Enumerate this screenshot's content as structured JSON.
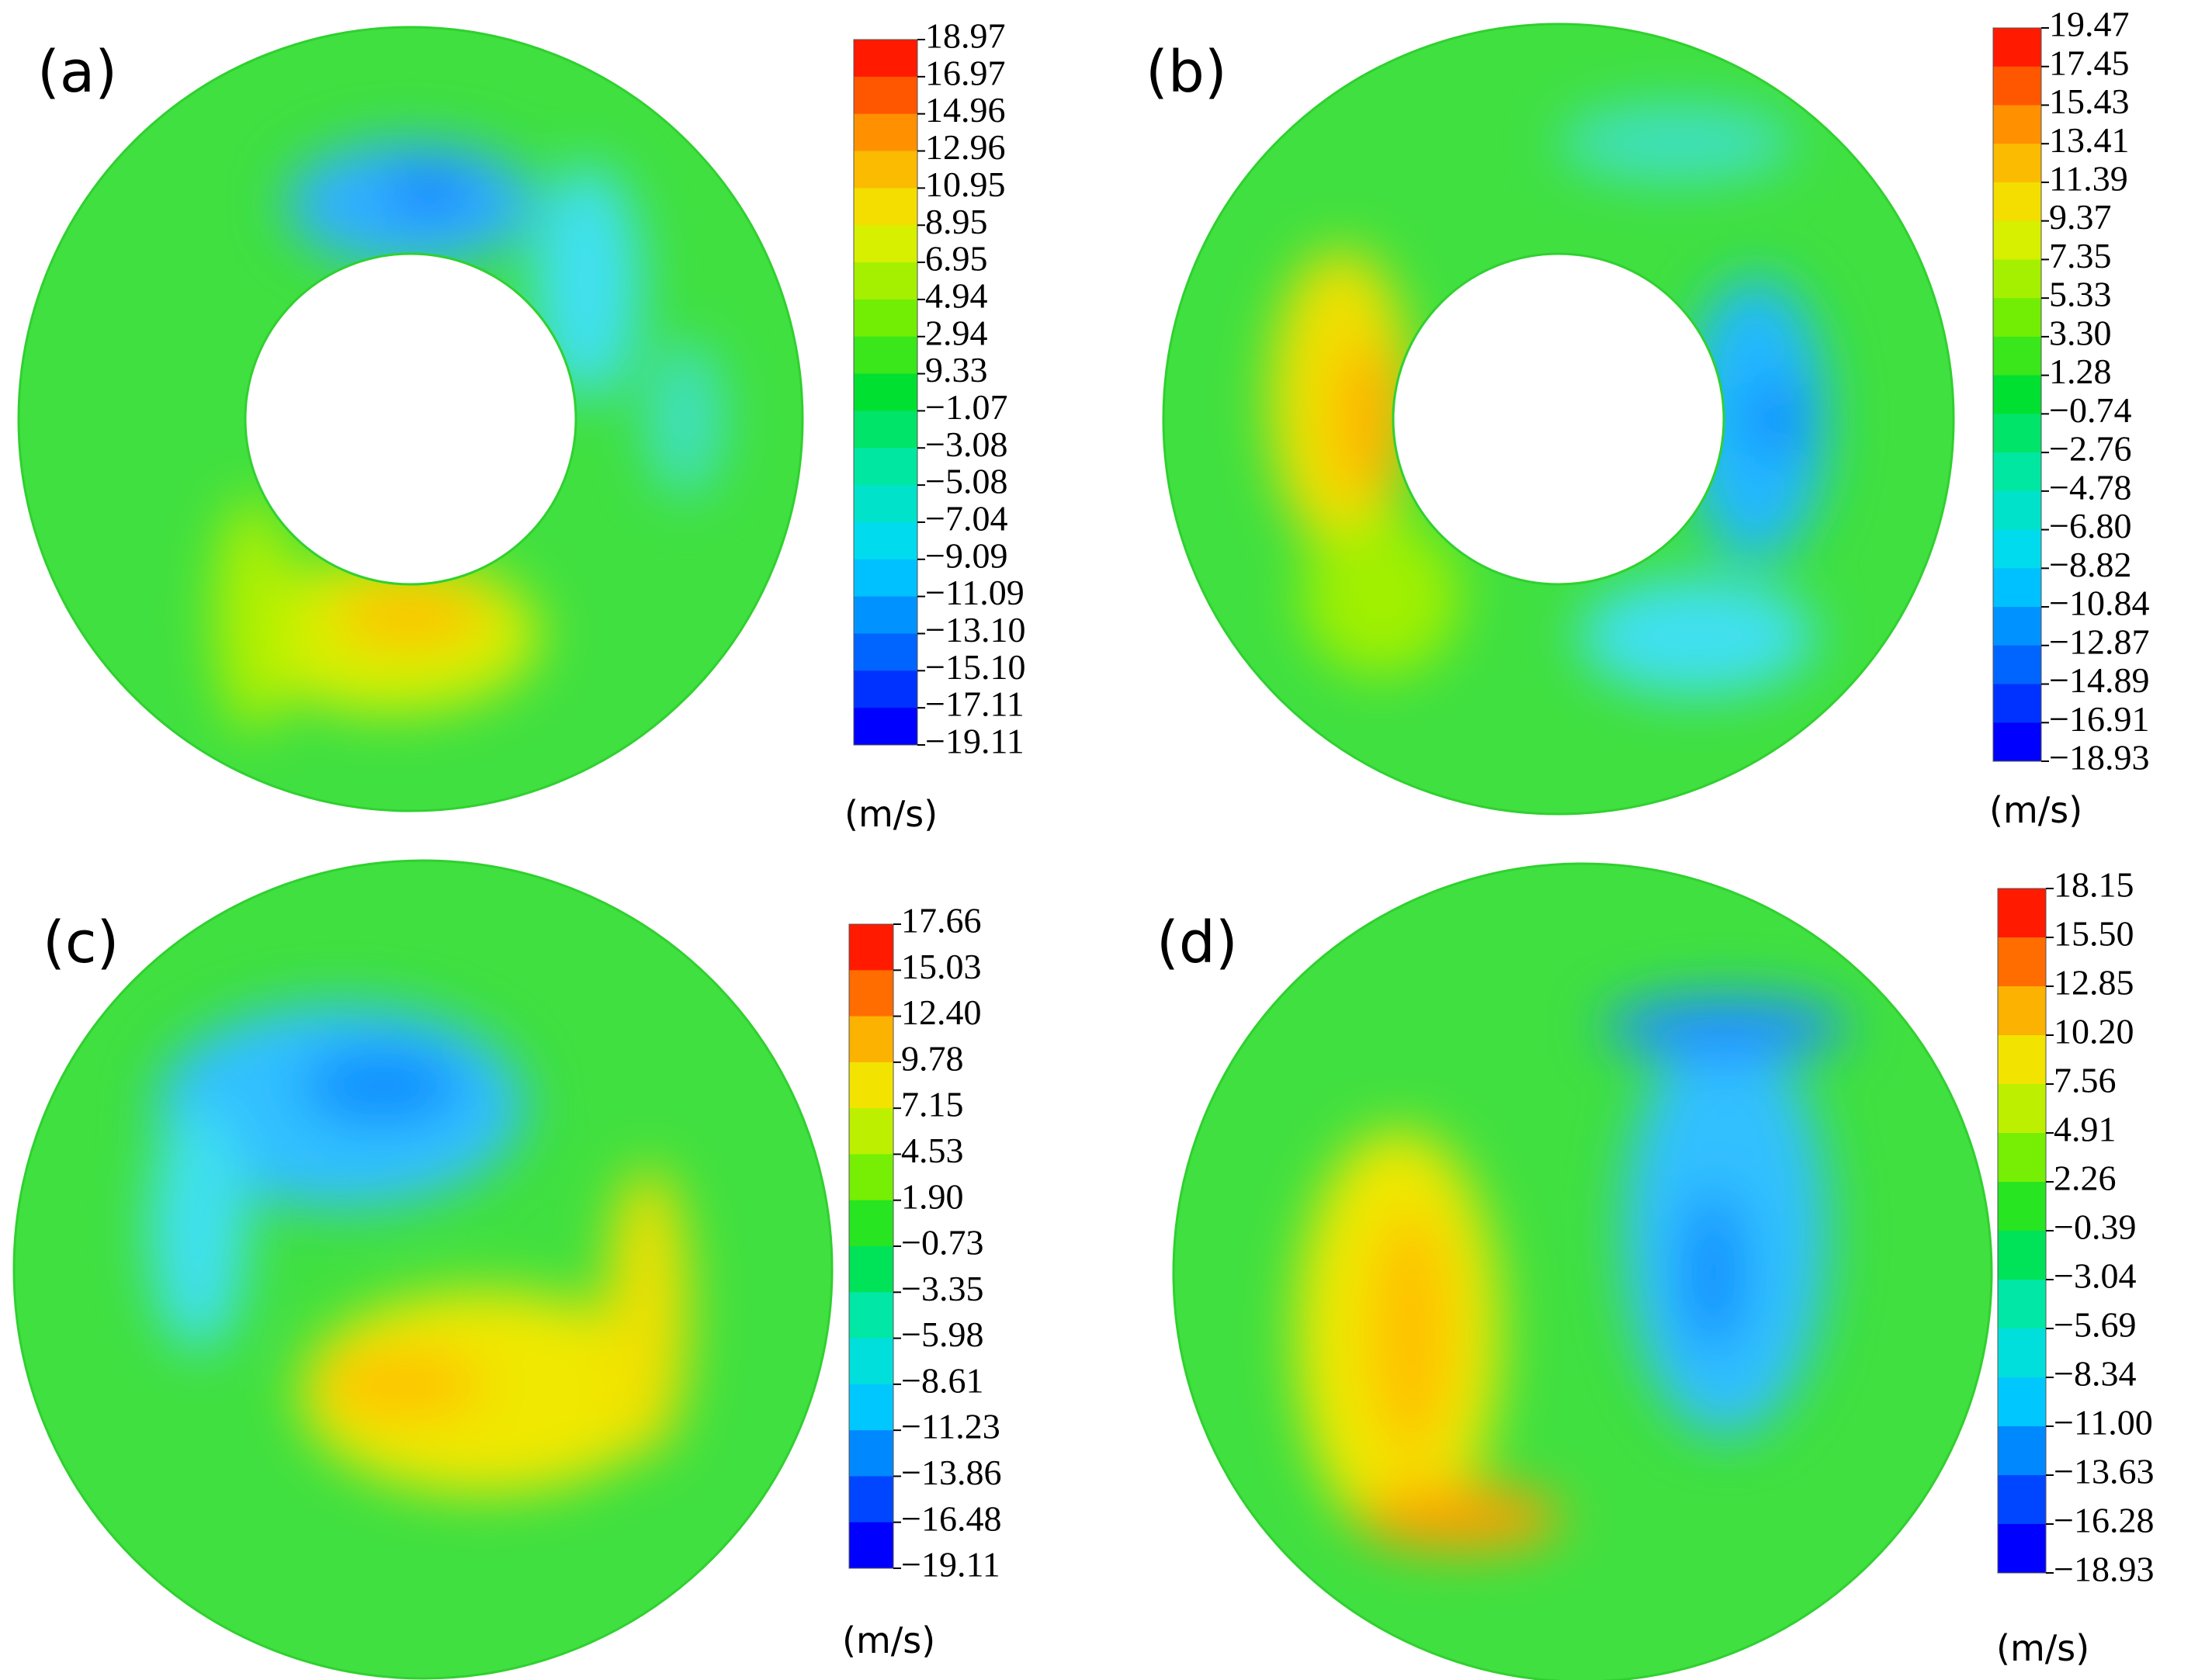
{
  "chart_data": [
    {
      "type": "contour",
      "label": "(a)",
      "unit": "(m/s)",
      "hole": true,
      "colorscale": [
        "#0000ff",
        "#0070ff",
        "#00d8ff",
        "#00e8b0",
        "#00e030",
        "#80f000",
        "#f0f000",
        "#ffa000",
        "#ff1a00"
      ],
      "colorbar_ticks": [
        18.97,
        16.97,
        14.96,
        12.96,
        10.95,
        8.95,
        6.95,
        4.94,
        2.94,
        9.33,
        {
          "value": -1.07,
          "label": "−1.07"
        },
        {
          "value": -3.08,
          "label": "−3.08"
        },
        {
          "value": -5.08,
          "label": "−5.08"
        },
        {
          "value": -7.04,
          "label": "−7.04"
        },
        {
          "value": -9.09,
          "label": "−9.09"
        },
        {
          "value": -11.09,
          "label": "−11.09"
        },
        {
          "value": -13.1,
          "label": "−13.10"
        },
        {
          "value": -15.1,
          "label": "−15.10"
        },
        {
          "value": -17.11,
          "label": "−17.11"
        },
        {
          "value": -19.11,
          "label": "−19.11"
        }
      ]
    },
    {
      "type": "contour",
      "label": "(b)",
      "unit": "(m/s)",
      "hole": true,
      "colorscale": [
        "#0000ff",
        "#0070ff",
        "#00d8ff",
        "#00e8b0",
        "#00e030",
        "#80f000",
        "#f0f000",
        "#ffa000",
        "#ff1a00"
      ],
      "colorbar_ticks": [
        19.47,
        17.45,
        15.43,
        13.41,
        11.39,
        9.37,
        7.35,
        5.33,
        {
          "value": 3.3,
          "label": "3.30"
        },
        1.28,
        {
          "value": -0.74,
          "label": "−0.74"
        },
        {
          "value": -2.76,
          "label": "−2.76"
        },
        {
          "value": -4.78,
          "label": "−4.78"
        },
        {
          "value": -6.8,
          "label": "−6.80"
        },
        {
          "value": -8.82,
          "label": "−8.82"
        },
        {
          "value": -10.84,
          "label": "−10.84"
        },
        {
          "value": -12.87,
          "label": "−12.87"
        },
        {
          "value": -14.89,
          "label": "−14.89"
        },
        {
          "value": -16.91,
          "label": "−16.91"
        },
        {
          "value": -18.93,
          "label": "−18.93"
        }
      ]
    },
    {
      "type": "contour",
      "label": "(c)",
      "unit": "(m/s)",
      "hole": false,
      "colorscale": [
        "#0000ff",
        "#0070ff",
        "#00d8ff",
        "#00e8b0",
        "#00e030",
        "#80f000",
        "#f0f000",
        "#ffa000",
        "#ff1a00"
      ],
      "colorbar_ticks": [
        17.66,
        15.03,
        {
          "value": 12.4,
          "label": "12.40"
        },
        9.78,
        7.15,
        4.53,
        {
          "value": 1.9,
          "label": "1.90"
        },
        {
          "value": -0.73,
          "label": "−0.73"
        },
        {
          "value": -3.35,
          "label": "−3.35"
        },
        {
          "value": -5.98,
          "label": "−5.98"
        },
        {
          "value": -8.61,
          "label": "−8.61"
        },
        {
          "value": -11.23,
          "label": "−11.23"
        },
        {
          "value": -13.86,
          "label": "−13.86"
        },
        {
          "value": -16.48,
          "label": "−16.48"
        },
        {
          "value": -19.11,
          "label": "−19.11"
        }
      ]
    },
    {
      "type": "contour",
      "label": "(d)",
      "unit": "(m/s)",
      "hole": false,
      "colorscale": [
        "#0000ff",
        "#0070ff",
        "#00d8ff",
        "#00e8b0",
        "#00e030",
        "#80f000",
        "#f0f000",
        "#ffa000",
        "#ff1a00"
      ],
      "colorbar_ticks": [
        18.15,
        {
          "value": 15.5,
          "label": "15.50"
        },
        12.85,
        {
          "value": 10.2,
          "label": "10.20"
        },
        7.56,
        4.91,
        2.26,
        {
          "value": -0.39,
          "label": "−0.39"
        },
        {
          "value": -3.04,
          "label": "−3.04"
        },
        {
          "value": -5.69,
          "label": "−5.69"
        },
        {
          "value": -8.34,
          "label": "−8.34"
        },
        {
          "value": -11.0,
          "label": "−11.00"
        },
        {
          "value": -13.63,
          "label": "−13.63"
        },
        {
          "value": -16.28,
          "label": "−16.28"
        },
        {
          "value": -18.93,
          "label": "−18.93"
        }
      ]
    }
  ]
}
